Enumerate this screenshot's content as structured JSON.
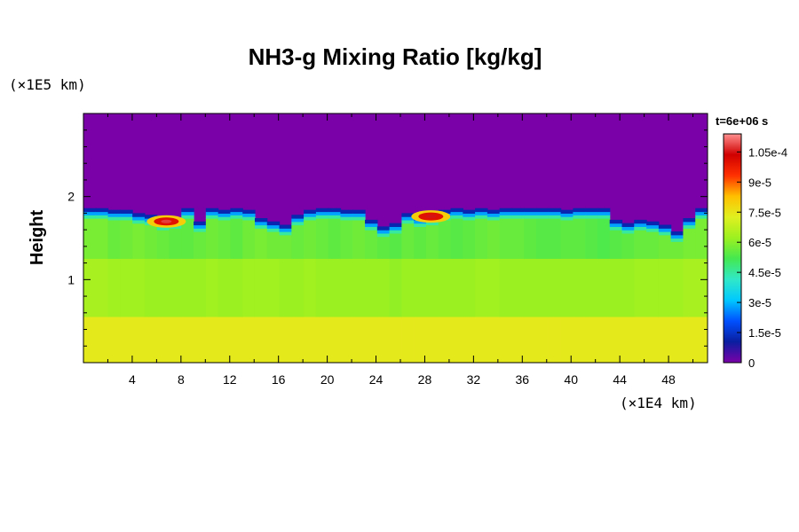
{
  "chart_data": {
    "type": "heatmap",
    "title": "NH3-g Mixing Ratio [kg/kg]",
    "ylabel": "Height",
    "x_unit_label": "(×1E4 km)",
    "y_unit_label": "(×1E5 km)",
    "time_label": "t=6e+06 s",
    "x_ticks": [
      "4",
      "8",
      "12",
      "16",
      "20",
      "24",
      "28",
      "32",
      "36",
      "40",
      "44",
      "48"
    ],
    "x_tick_values": [
      4,
      8,
      12,
      16,
      20,
      24,
      28,
      32,
      36,
      40,
      44,
      48
    ],
    "y_ticks": [
      "1",
      "2"
    ],
    "y_tick_values": [
      1,
      2
    ],
    "xlim": [
      0,
      51.2
    ],
    "ylim": [
      0,
      3.0
    ],
    "colorbar": {
      "ticks": [
        "0",
        "1.5e-5",
        "3e-5",
        "4.5e-5",
        "6e-5",
        "7.5e-5",
        "9e-5",
        "1.05e-4"
      ],
      "tick_values": [
        0,
        1.5e-05,
        3e-05,
        4.5e-05,
        6e-05,
        7.5e-05,
        9e-05,
        0.000105
      ],
      "range": [
        0,
        0.000114
      ],
      "colors": [
        "#7a00a8",
        "#0a1ea0",
        "#0050ff",
        "#00c8ff",
        "#30e8c8",
        "#44e850",
        "#9cf020",
        "#e0f020",
        "#ffc000",
        "#ff3000",
        "#d00000",
        "#ff9090"
      ]
    },
    "cloud_top_height": [
      1.86,
      1.86,
      1.84,
      1.84,
      1.8,
      1.78,
      1.72,
      1.74,
      1.86,
      1.7,
      1.86,
      1.84,
      1.86,
      1.84,
      1.74,
      1.7,
      1.66,
      1.78,
      1.84,
      1.86,
      1.86,
      1.84,
      1.84,
      1.72,
      1.64,
      1.68,
      1.8,
      1.76,
      1.78,
      1.84,
      1.86,
      1.84,
      1.86,
      1.84,
      1.86,
      1.86,
      1.86,
      1.86,
      1.86,
      1.84,
      1.86,
      1.86,
      1.86,
      1.72,
      1.68,
      1.72,
      1.7,
      1.66,
      1.58,
      1.74,
      1.86
    ],
    "interior_values": [
      [
        5.8e-05,
        5.8e-05,
        5.6e-05,
        5.7e-05,
        5.8e-05,
        5.7e-05,
        5.6e-05,
        5.5e-05,
        5.5e-05,
        5.6e-05,
        5.7e-05,
        5.6e-05,
        5.5e-05,
        5.7e-05,
        5.8e-05,
        5.7e-05,
        5.7e-05,
        5.6e-05,
        5.7e-05,
        5.6e-05,
        5.5e-05,
        5.6e-05,
        5.7e-05,
        5.6e-05,
        5.5e-05,
        5.4e-05,
        5.6e-05,
        5.5e-05,
        5.6e-05,
        5.5e-05,
        5.4e-05,
        5.5e-05,
        5.6e-05,
        5.7e-05,
        5.6e-05,
        5.6e-05,
        5.5e-05,
        5.4e-05,
        5.4e-05,
        5.5e-05,
        5.5e-05,
        5.4e-05,
        5.3e-05,
        5.4e-05,
        5.5e-05,
        5.6e-05,
        5.6e-05,
        5.7e-05,
        5.7e-05,
        5.8e-05,
        5.8e-05
      ],
      [
        6.4e-05,
        6.4e-05,
        6.3e-05,
        6.3e-05,
        6.3e-05,
        6.2e-05,
        6.2e-05,
        6.2e-05,
        6.2e-05,
        6.2e-05,
        6.3e-05,
        6.2e-05,
        6.2e-05,
        6.3e-05,
        6.3e-05,
        6.3e-05,
        6.2e-05,
        6.2e-05,
        6.3e-05,
        6.2e-05,
        6.2e-05,
        6.2e-05,
        6.2e-05,
        6.2e-05,
        6.2e-05,
        6.1e-05,
        6.2e-05,
        6.2e-05,
        6.2e-05,
        6.2e-05,
        6.2e-05,
        6.2e-05,
        6.3e-05,
        6.3e-05,
        6.2e-05,
        6.2e-05,
        6.2e-05,
        6.2e-05,
        6.2e-05,
        6.2e-05,
        6.2e-05,
        6.2e-05,
        6.2e-05,
        6.2e-05,
        6.2e-05,
        6.3e-05,
        6.3e-05,
        6.3e-05,
        6.3e-05,
        6.4e-05,
        6.4e-05
      ],
      [
        7.4e-05,
        7.4e-05,
        7.4e-05,
        7.4e-05,
        7.4e-05,
        7.4e-05,
        7.4e-05,
        7.4e-05,
        7.4e-05,
        7.4e-05,
        7.4e-05,
        7.4e-05,
        7.4e-05,
        7.4e-05,
        7.4e-05,
        7.4e-05,
        7.4e-05,
        7.4e-05,
        7.4e-05,
        7.4e-05,
        7.4e-05,
        7.4e-05,
        7.4e-05,
        7.4e-05,
        7.4e-05,
        7.4e-05,
        7.4e-05,
        7.4e-05,
        7.4e-05,
        7.4e-05,
        7.4e-05,
        7.4e-05,
        7.4e-05,
        7.4e-05,
        7.4e-05,
        7.4e-05,
        7.4e-05,
        7.4e-05,
        7.4e-05,
        7.4e-05,
        7.4e-05,
        7.4e-05,
        7.4e-05,
        7.4e-05,
        7.4e-05,
        7.4e-05,
        7.4e-05,
        7.4e-05,
        7.4e-05,
        7.4e-05,
        7.4e-05
      ]
    ],
    "hotspots": [
      {
        "x": 6.8,
        "y": 1.7,
        "value": 0.000108
      },
      {
        "x": 28.5,
        "y": 1.76,
        "value": 0.000105
      }
    ]
  }
}
